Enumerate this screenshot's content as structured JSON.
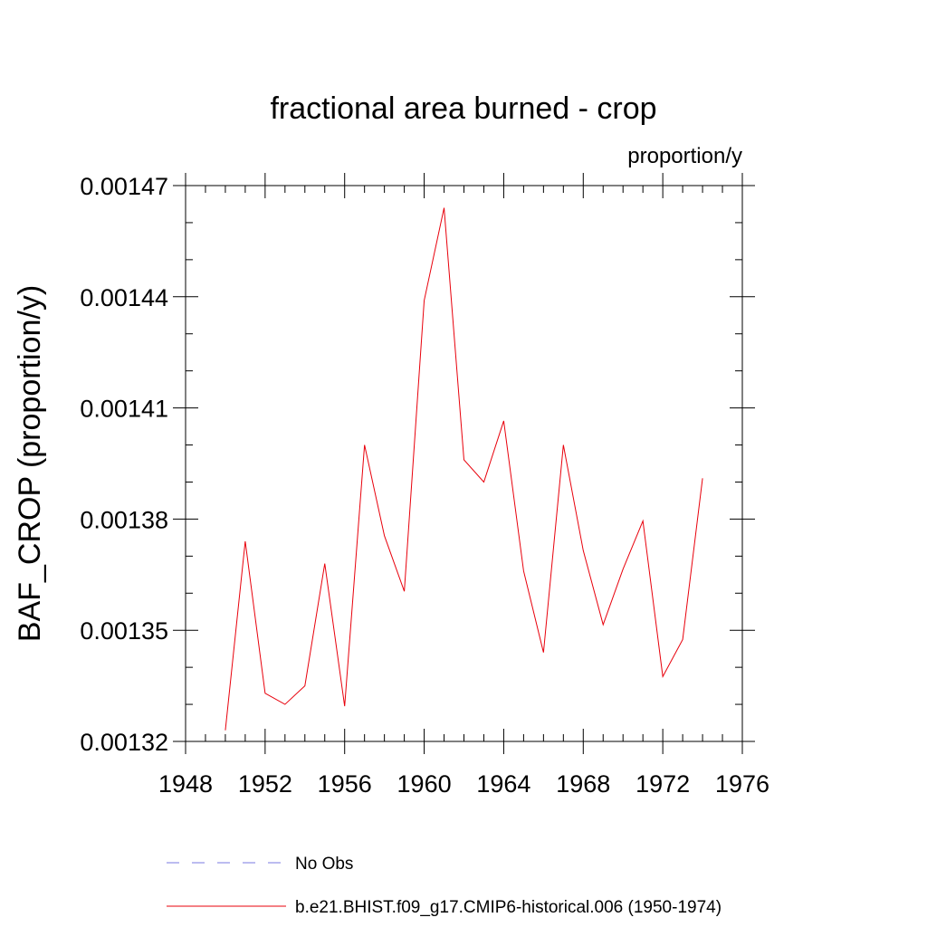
{
  "chart_data": {
    "type": "line",
    "title": "fractional area burned - crop",
    "units_label": "proportion/y",
    "ylabel": "BAF_CROP  (proportion/y)",
    "xlabel": "",
    "xlim": [
      1948,
      1976
    ],
    "ylim": [
      0.00132,
      0.00147
    ],
    "x_ticks": [
      1948,
      1952,
      1956,
      1960,
      1964,
      1968,
      1972,
      1976
    ],
    "x_tick_labels": [
      "1948",
      "1952",
      "1956",
      "1960",
      "1964",
      "1968",
      "1972",
      "1976"
    ],
    "x_minor_step": 1,
    "y_ticks": [
      0.00132,
      0.00135,
      0.00138,
      0.00141,
      0.00144,
      0.00147
    ],
    "y_tick_labels": [
      "0.00132",
      "0.00135",
      "0.00138",
      "0.00141",
      "0.00144",
      "0.00147"
    ],
    "y_minor_step": 1e-05,
    "grid": false,
    "legend_position": "bottom",
    "series": [
      {
        "name": "b.e21.BHIST.f09_g17.CMIP6-historical.006 (1950-1974)",
        "color": "#e8000b",
        "style": "solid",
        "x": [
          1950,
          1951,
          1952,
          1953,
          1954,
          1955,
          1956,
          1957,
          1958,
          1959,
          1960,
          1961,
          1962,
          1963,
          1964,
          1965,
          1966,
          1967,
          1968,
          1969,
          1970,
          1971,
          1972,
          1973,
          1974
        ],
        "values": [
          0.001323,
          0.001374,
          0.001333,
          0.00133,
          0.001335,
          0.001368,
          0.0013295,
          0.0014,
          0.0013755,
          0.0013605,
          0.001439,
          0.001464,
          0.001396,
          0.00139,
          0.0014065,
          0.001366,
          0.001344,
          0.0014,
          0.0013715,
          0.0013515,
          0.0013665,
          0.0013795,
          0.0013375,
          0.0013475,
          0.001391
        ]
      }
    ],
    "legend": [
      {
        "label": "No Obs",
        "color": "#7a7ae0",
        "style": "dashed"
      },
      {
        "label": "b.e21.BHIST.f09_g17.CMIP6-historical.006 (1950-1974)",
        "color": "#e8000b",
        "style": "solid"
      }
    ]
  }
}
